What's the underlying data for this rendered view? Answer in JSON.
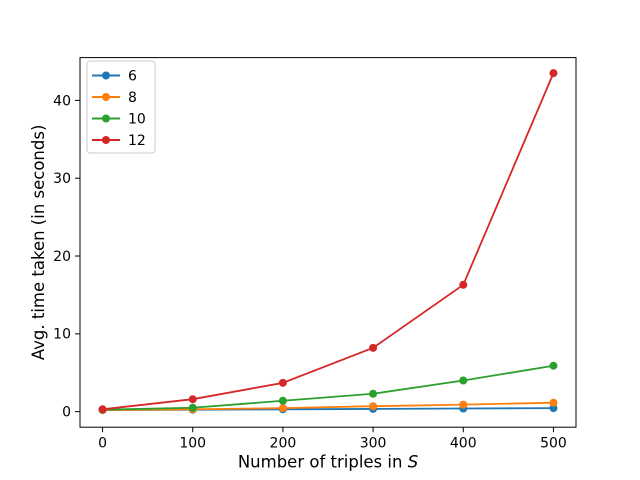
{
  "figure": {
    "background": "#ffffff",
    "title": ""
  },
  "chart_data": {
    "type": "line",
    "title": "",
    "xlabel_parts": [
      {
        "text": "Number of triples in ",
        "italic": false
      },
      {
        "text": "S",
        "italic": true
      }
    ],
    "xlabel_plain": "Number of triples in S",
    "ylabel": "Avg. time taken (in seconds)",
    "x": [
      0,
      100,
      200,
      300,
      400,
      500
    ],
    "xticks": [
      "0",
      "100",
      "200",
      "300",
      "400",
      "500"
    ],
    "yticks": [
      "0",
      "10",
      "20",
      "30",
      "40"
    ],
    "xlim": [
      -25,
      525
    ],
    "ylim": [
      -2,
      45.5
    ],
    "grid": false,
    "marker": "circle",
    "axis_color": "#000000",
    "legend": {
      "position": "upper-left",
      "border_color": "#cccccc",
      "background": "rgba(255,255,255,0.85)"
    },
    "series": [
      {
        "name": "6",
        "color": "#1f77b4",
        "values": [
          0.2,
          0.25,
          0.3,
          0.35,
          0.4,
          0.45
        ]
      },
      {
        "name": "8",
        "color": "#ff7f0e",
        "values": [
          0.2,
          0.3,
          0.45,
          0.7,
          0.9,
          1.15
        ]
      },
      {
        "name": "10",
        "color": "#2ca02c",
        "values": [
          0.25,
          0.5,
          1.4,
          2.3,
          4.0,
          5.9
        ]
      },
      {
        "name": "12",
        "color": "#d62728",
        "values": [
          0.3,
          1.6,
          3.7,
          8.2,
          16.3,
          43.5
        ]
      }
    ]
  }
}
